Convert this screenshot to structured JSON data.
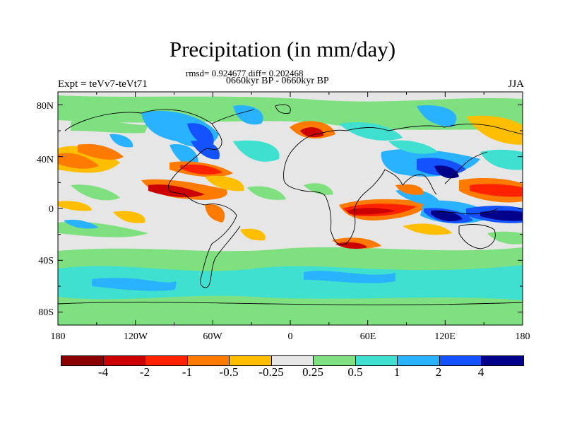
{
  "figure": {
    "title": "Precipitation (in mm/day)",
    "stats": "rmsd= 0.924677 diff= 0.202468",
    "period": "0660kyr BP - 0660kyr BP",
    "experiment": "Expt = teVv7-teVt71",
    "season": "JJA"
  },
  "axes": {
    "lat_labels": [
      "80N",
      "40N",
      "0",
      "40S",
      "80S"
    ],
    "lon_labels": [
      "180",
      "120W",
      "60W",
      "0",
      "60E",
      "120E",
      "180"
    ]
  },
  "colorbar": {
    "labels": [
      "-4",
      "-2",
      "-1",
      "-0.5",
      "-0.25",
      "0.25",
      "0.5",
      "1",
      "2",
      "4"
    ],
    "colors": [
      "#8b0000",
      "#cc0000",
      "#ff2200",
      "#ff7b00",
      "#ffbe00",
      "#e6e6e6",
      "#7fe07f",
      "#3fe0cf",
      "#29b2ff",
      "#1452ff",
      "#00008a"
    ]
  }
}
